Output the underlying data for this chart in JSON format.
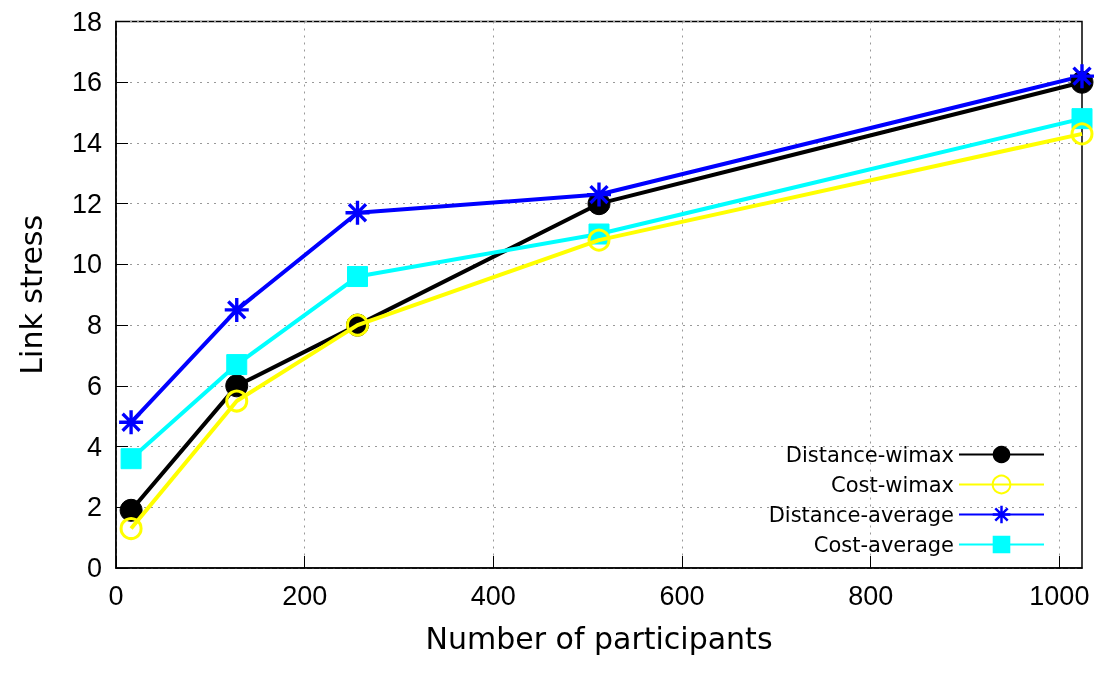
{
  "chart_data": {
    "type": "line",
    "xlabel": "Number of participants",
    "ylabel": "Link stress",
    "x": [
      16,
      128,
      256,
      512,
      1024
    ],
    "series": [
      {
        "name": "Distance-wimax",
        "color": "#000000",
        "marker": "circle",
        "values": [
          1.9,
          6.0,
          8.0,
          12.0,
          16.0
        ]
      },
      {
        "name": "Cost-wimax",
        "color": "#ffff00",
        "marker": "open-circle",
        "values": [
          1.3,
          5.5,
          8.0,
          10.8,
          14.3
        ]
      },
      {
        "name": "Distance-average",
        "color": "#0000ff",
        "marker": "cross",
        "values": [
          4.8,
          8.5,
          11.7,
          12.3,
          16.2
        ]
      },
      {
        "name": "Cost-average",
        "color": "#00ffff",
        "marker": "square",
        "values": [
          3.6,
          6.7,
          9.6,
          11.0,
          14.8
        ]
      }
    ],
    "xlim": [
      0,
      1024
    ],
    "xticks": [
      0,
      200,
      400,
      600,
      800,
      1000
    ],
    "ylim": [
      0,
      18
    ],
    "yticks": [
      0,
      2,
      4,
      6,
      8,
      10,
      12,
      14,
      16,
      18
    ],
    "grid": true,
    "legend": "bottom right",
    "line_style": "solid"
  }
}
